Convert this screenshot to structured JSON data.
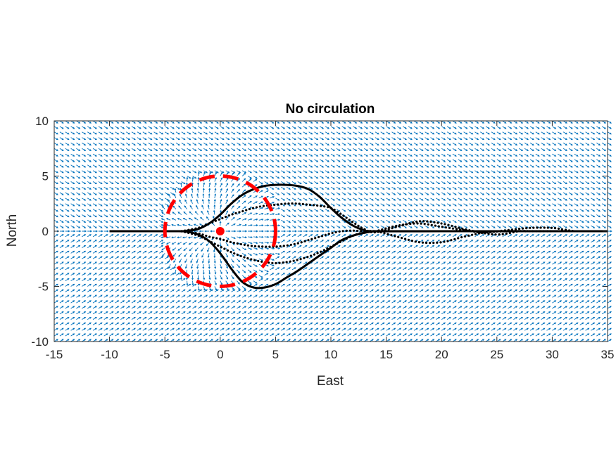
{
  "chart_data": {
    "type": "line",
    "title": "No circulation",
    "xlabel": "East",
    "ylabel": "North",
    "xlim": [
      -15,
      35
    ],
    "ylim": [
      -10,
      10
    ],
    "xticks": [
      -15,
      -10,
      -5,
      0,
      5,
      10,
      15,
      20,
      25,
      30,
      35
    ],
    "yticks": [
      -10,
      -5,
      0,
      5,
      10
    ],
    "grid": false,
    "legend": "none",
    "colors": {
      "field": "#0072BD",
      "trajectory": "#000000",
      "circle": "#FF0000",
      "axis": "#262626"
    },
    "source_point": {
      "x": 0,
      "y": 0
    },
    "dashed_circle": {
      "center": [
        0,
        0
      ],
      "radius": 5
    },
    "series": [
      {
        "style": "solid",
        "x": [
          -10,
          -4,
          -3,
          -2,
          -1,
          0,
          1,
          2,
          3,
          4,
          5,
          6,
          7,
          8,
          9,
          10,
          11,
          12,
          13,
          14,
          20,
          25,
          30,
          35
        ],
        "y": [
          0,
          0,
          0.05,
          0.2,
          0.7,
          1.5,
          2.5,
          3.3,
          3.8,
          4.1,
          4.2,
          4.2,
          4.1,
          3.8,
          3.1,
          2.1,
          1.2,
          0.5,
          0.1,
          0,
          0,
          0,
          0,
          0
        ]
      },
      {
        "style": "solid",
        "x": [
          -10,
          -4,
          -3,
          -2,
          -1,
          0,
          1,
          2,
          3,
          4,
          5,
          6,
          7,
          8,
          9,
          10,
          11,
          12,
          13,
          14,
          15,
          20,
          25,
          30,
          35
        ],
        "y": [
          0,
          0,
          -0.05,
          -0.3,
          -0.9,
          -2.0,
          -3.4,
          -4.6,
          -5.1,
          -5.1,
          -4.8,
          -4.2,
          -3.6,
          -2.9,
          -2.2,
          -1.5,
          -0.8,
          -0.4,
          -0.15,
          0,
          0,
          0,
          0,
          0,
          0
        ]
      },
      {
        "style": "dotted",
        "x": [
          -3.5,
          -2,
          -1,
          0,
          1,
          2,
          3,
          4,
          5,
          6,
          7,
          8,
          9,
          10,
          11,
          12,
          13,
          14,
          16,
          18,
          20,
          22,
          23,
          24,
          26,
          28,
          30,
          31,
          32
        ],
        "y": [
          0,
          0.3,
          0.7,
          1.1,
          1.5,
          1.8,
          2.1,
          2.3,
          2.4,
          2.5,
          2.5,
          2.4,
          2.3,
          2.1,
          1.5,
          0.8,
          0.2,
          -0.1,
          0.4,
          0.9,
          0.7,
          0.2,
          0,
          -0.1,
          0.1,
          0.3,
          0.3,
          0.15,
          0
        ]
      },
      {
        "style": "dotted",
        "x": [
          -3.5,
          -2,
          -1,
          0,
          1,
          2,
          3,
          4,
          5,
          6,
          7,
          8,
          9,
          10,
          11,
          12,
          13,
          14,
          16,
          18,
          20,
          22,
          24,
          26,
          28,
          30
        ],
        "y": [
          0,
          -0.4,
          -0.9,
          -1.4,
          -1.9,
          -2.3,
          -2.6,
          -2.8,
          -2.9,
          -2.8,
          -2.6,
          -2.3,
          -1.9,
          -1.4,
          -0.9,
          -0.4,
          -0.1,
          0,
          -0.5,
          -1.0,
          -1.0,
          -0.5,
          -0.1,
          0,
          0,
          0
        ]
      },
      {
        "style": "dotted",
        "x": [
          -3.5,
          -2,
          -1,
          0,
          1,
          2,
          3,
          4,
          5,
          6,
          7,
          8,
          9,
          10,
          11,
          12,
          13,
          14,
          16,
          18,
          20,
          22,
          24,
          25,
          26,
          27,
          28
        ],
        "y": [
          0,
          -0.2,
          -0.5,
          -0.7,
          -1.0,
          -1.2,
          -1.35,
          -1.4,
          -1.4,
          -1.3,
          -1.1,
          -0.8,
          -0.5,
          -0.2,
          0,
          0.05,
          0,
          0,
          0.5,
          0.7,
          0.4,
          0.1,
          -0.2,
          -0.3,
          -0.2,
          0,
          0
        ]
      }
    ]
  }
}
